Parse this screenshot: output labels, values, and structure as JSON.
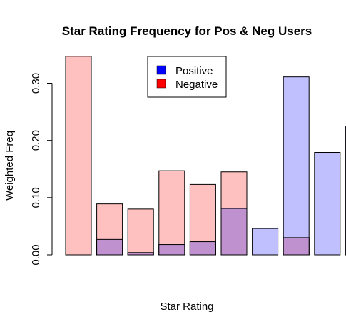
{
  "chart_data": {
    "type": "bar",
    "title": "Star Rating Frequency for Pos & Neg Users",
    "xlabel": "Star Rating",
    "ylabel": "Weighted Freq",
    "ylim": [
      0,
      0.35
    ],
    "yticks": [
      "0.00",
      "0.10",
      "0.20",
      "0.30"
    ],
    "ytick_values": [
      0,
      0.1,
      0.2,
      0.3
    ],
    "grid": false,
    "legend_position": "top-center",
    "overlay": true,
    "series": [
      {
        "name": "Positive",
        "color": "#0000ff",
        "fill": "#c0c0ff",
        "values": [
          0.0,
          0.027,
          0.004,
          0.018,
          0.023,
          0.081,
          0.046,
          0.311,
          0.179,
          0.225
        ]
      },
      {
        "name": "Negative",
        "color": "#ff0000",
        "fill": "#ffc0c0",
        "values": [
          0.347,
          0.089,
          0.08,
          0.147,
          0.123,
          0.145,
          0.0,
          0.03,
          0.0,
          0.0
        ]
      }
    ],
    "overlap_fill": "#bf91cf"
  }
}
